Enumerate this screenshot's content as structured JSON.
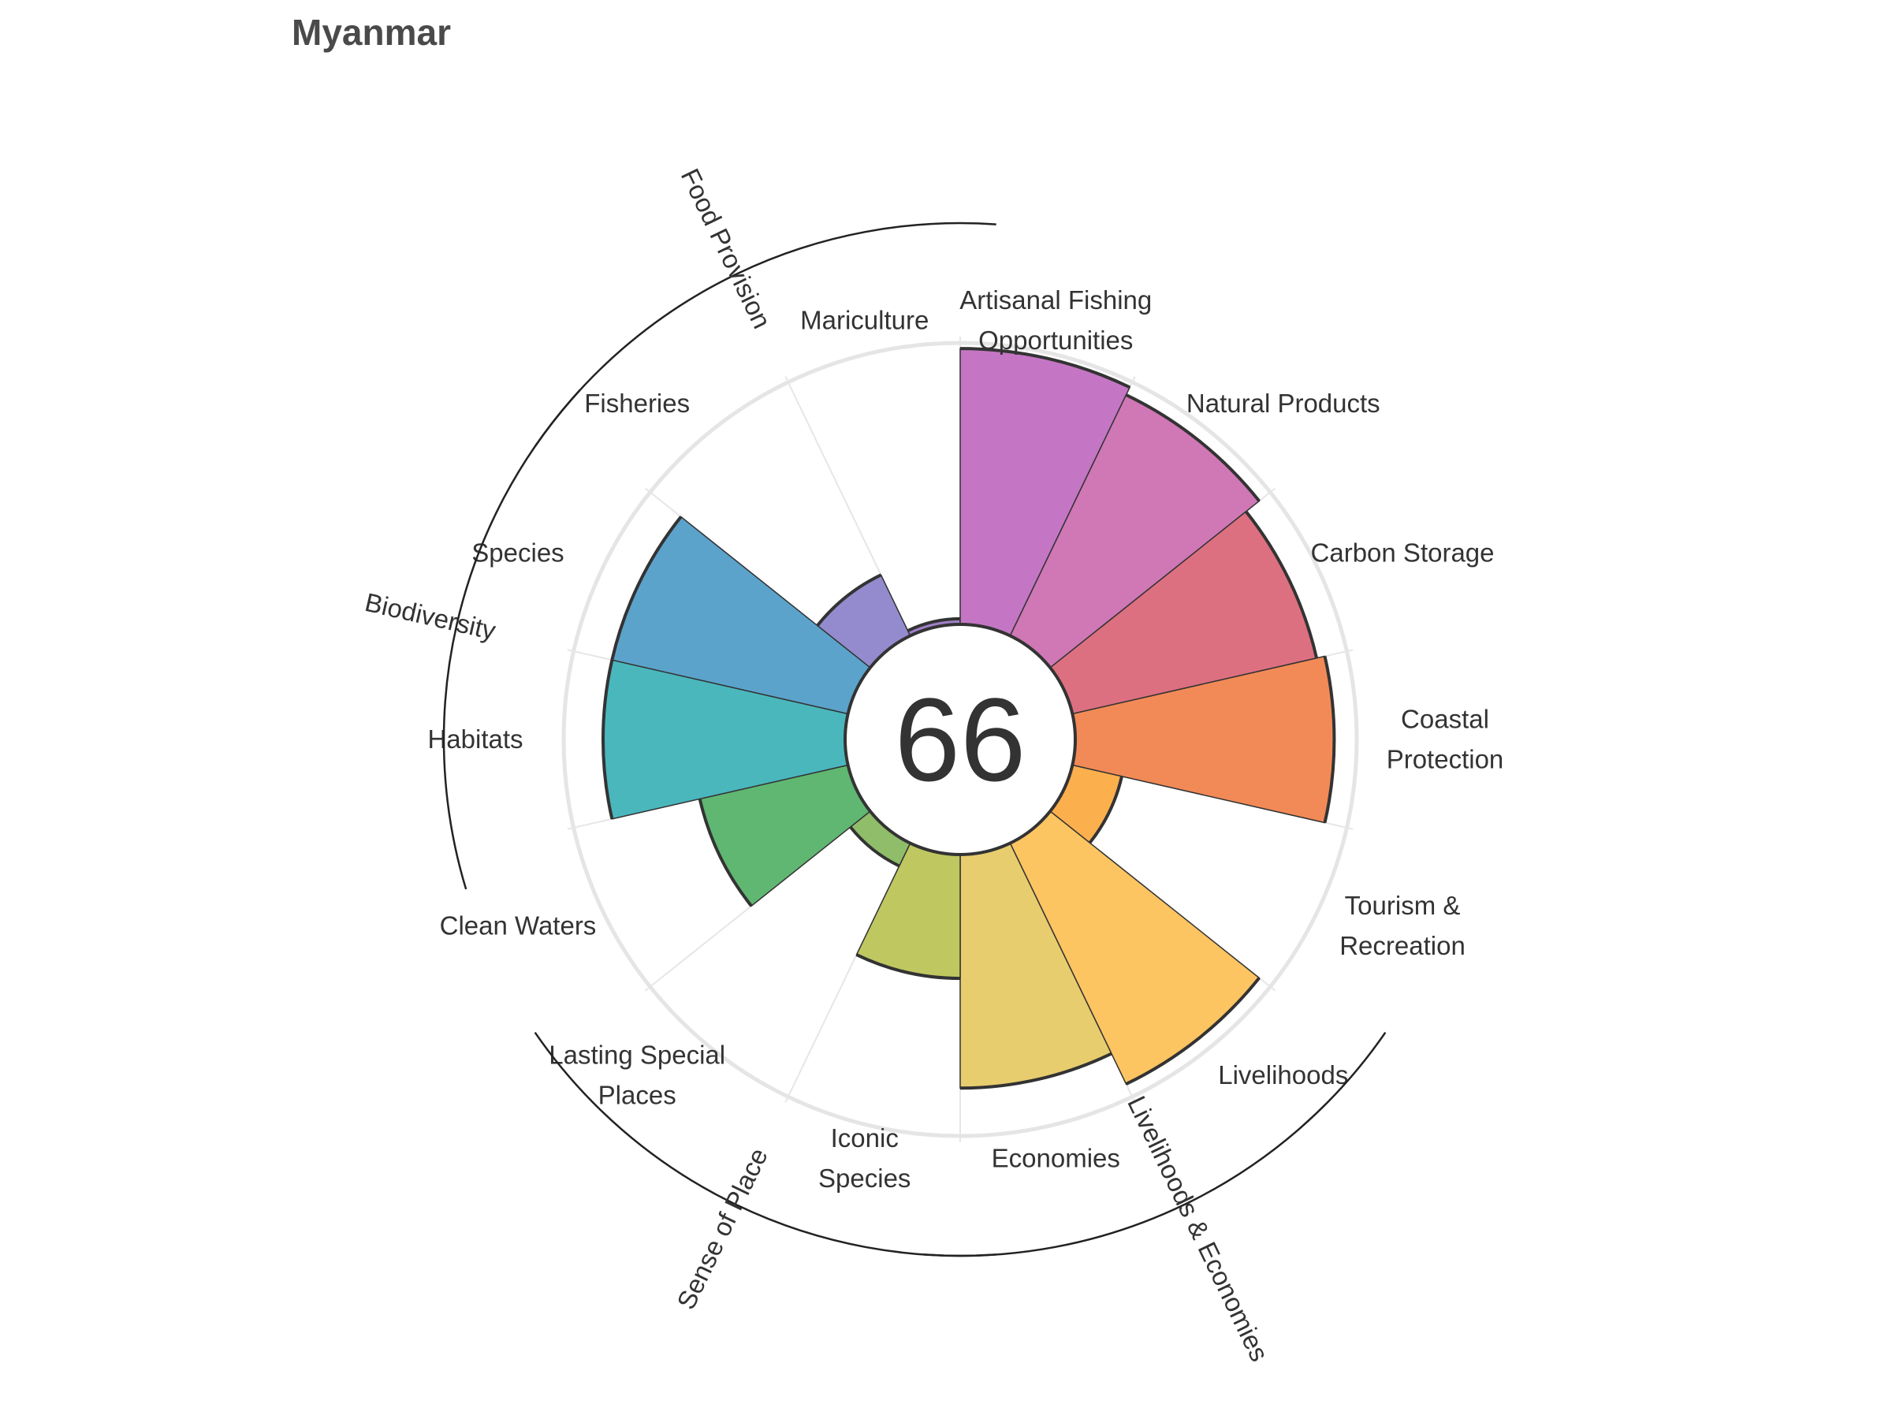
{
  "page": {
    "title": "Myanmar"
  },
  "chart_data": {
    "type": "flower",
    "title": "Myanmar",
    "score": 66,
    "ylim": [
      0,
      100
    ],
    "petals": [
      {
        "id": "fisheries",
        "label": [
          "Fisheries"
        ],
        "value": 24,
        "color": "#938bce"
      },
      {
        "id": "mariculture",
        "label": [
          "Mariculture"
        ],
        "value": 2,
        "color": "#9f7fc7"
      },
      {
        "id": "artisanal",
        "label": [
          "Artisanal Fishing",
          "Opportunities"
        ],
        "value": 98,
        "color": "#c476c4"
      },
      {
        "id": "natural_products",
        "label": [
          "Natural Products"
        ],
        "value": 95,
        "color": "#d077b6"
      },
      {
        "id": "carbon_storage",
        "label": [
          "Carbon Storage"
        ],
        "value": 89,
        "color": "#dd7080"
      },
      {
        "id": "coastal_protection",
        "label": [
          "Coastal",
          "Protection"
        ],
        "value": 92,
        "color": "#f28a57"
      },
      {
        "id": "tourism",
        "label": [
          "Tourism &",
          "Recreation"
        ],
        "value": 18,
        "color": "#fcaf4d"
      },
      {
        "id": "livelihoods",
        "label": [
          "Livelihoods"
        ],
        "value": 95,
        "color": "#fdc462"
      },
      {
        "id": "economies",
        "label": [
          "Economies"
        ],
        "value": 83,
        "color": "#e8cd6e"
      },
      {
        "id": "iconic_species",
        "label": [
          "Iconic",
          "Species"
        ],
        "value": 44,
        "color": "#bfc760"
      },
      {
        "id": "lasting_special_places",
        "label": [
          "Lasting Special",
          "Places"
        ],
        "value": 9,
        "color": "#8fbd6a"
      },
      {
        "id": "clean_waters",
        "label": [
          "Clean Waters"
        ],
        "value": 54,
        "color": "#5fb772"
      },
      {
        "id": "habitats",
        "label": [
          "Habitats"
        ],
        "value": 86,
        "color": "#4ab7bd"
      },
      {
        "id": "species",
        "label": [
          "Species"
        ],
        "value": 86,
        "color": "#5ba3cb"
      }
    ],
    "groups": [
      {
        "name": "Food Provision",
        "petals": [
          "fisheries",
          "mariculture"
        ]
      },
      {
        "name": "Biodiversity",
        "petals": [
          "habitats",
          "species"
        ]
      },
      {
        "name": "Sense of Place",
        "petals": [
          "iconic_species",
          "lasting_special_places"
        ]
      },
      {
        "name": "Livelihoods & Economies",
        "petals": [
          "livelihoods",
          "economies"
        ]
      }
    ]
  }
}
